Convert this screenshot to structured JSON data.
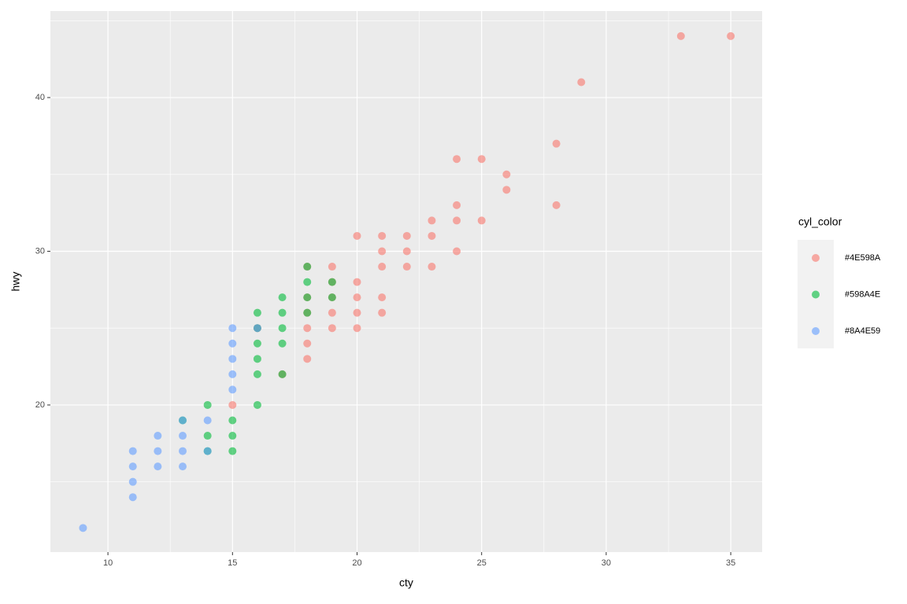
{
  "chart_data": {
    "type": "scatter",
    "x_label": "cty",
    "y_label": "hwy",
    "legend_title": "cyl_color",
    "xlim": [
      7.69,
      36.26
    ],
    "ylim": [
      10.43,
      45.63
    ],
    "xticks": [
      10,
      15,
      20,
      25,
      30,
      35
    ],
    "yticks": [
      20,
      30,
      40
    ],
    "x_minor_ticks": [
      12.5,
      17.5,
      22.5,
      27.5,
      32.5
    ],
    "y_minor_ticks": [
      15,
      25,
      35,
      45
    ],
    "grid": true,
    "series": [
      {
        "name": "#4E598A",
        "color": "#F8766D",
        "x": [
          35,
          33,
          29,
          28,
          28,
          26,
          26,
          25,
          25,
          24,
          24,
          24,
          24,
          23,
          23,
          23,
          22,
          22,
          22,
          21,
          21,
          21,
          21,
          21,
          20,
          20,
          20,
          20,
          20,
          19,
          19,
          19,
          19,
          18,
          18,
          18,
          18,
          18,
          18,
          17,
          15,
          19,
          16
        ],
        "y": [
          44,
          44,
          41,
          37,
          33,
          35,
          34,
          36,
          32,
          36,
          33,
          32,
          30,
          32,
          31,
          29,
          31,
          30,
          29,
          31,
          30,
          29,
          27,
          26,
          31,
          28,
          27,
          26,
          25,
          29,
          27,
          26,
          25,
          29,
          27,
          26,
          25,
          24,
          23,
          22,
          20,
          28,
          25
        ]
      },
      {
        "name": "#598A4E",
        "color": "#00BA38",
        "x": [
          18,
          17,
          18,
          19,
          17,
          16,
          18,
          16,
          17,
          16,
          17,
          16,
          16,
          16,
          14,
          15,
          15,
          15,
          14,
          13,
          14,
          19,
          18,
          17
        ],
        "y": [
          28,
          27,
          27,
          27,
          26,
          26,
          26,
          25,
          25,
          24,
          24,
          23,
          22,
          20,
          20,
          19,
          18,
          17,
          18,
          19,
          17,
          28,
          29,
          22
        ]
      },
      {
        "name": "#8A4E59",
        "color": "#619CFF",
        "x": [
          9,
          11,
          11,
          11,
          11,
          12,
          12,
          12,
          13,
          13,
          13,
          13,
          14,
          14,
          15,
          15,
          15,
          15,
          15,
          16
        ],
        "y": [
          12,
          14,
          15,
          16,
          17,
          16,
          17,
          18,
          16,
          17,
          18,
          19,
          17,
          19,
          21,
          22,
          23,
          24,
          25,
          25
        ]
      }
    ]
  }
}
